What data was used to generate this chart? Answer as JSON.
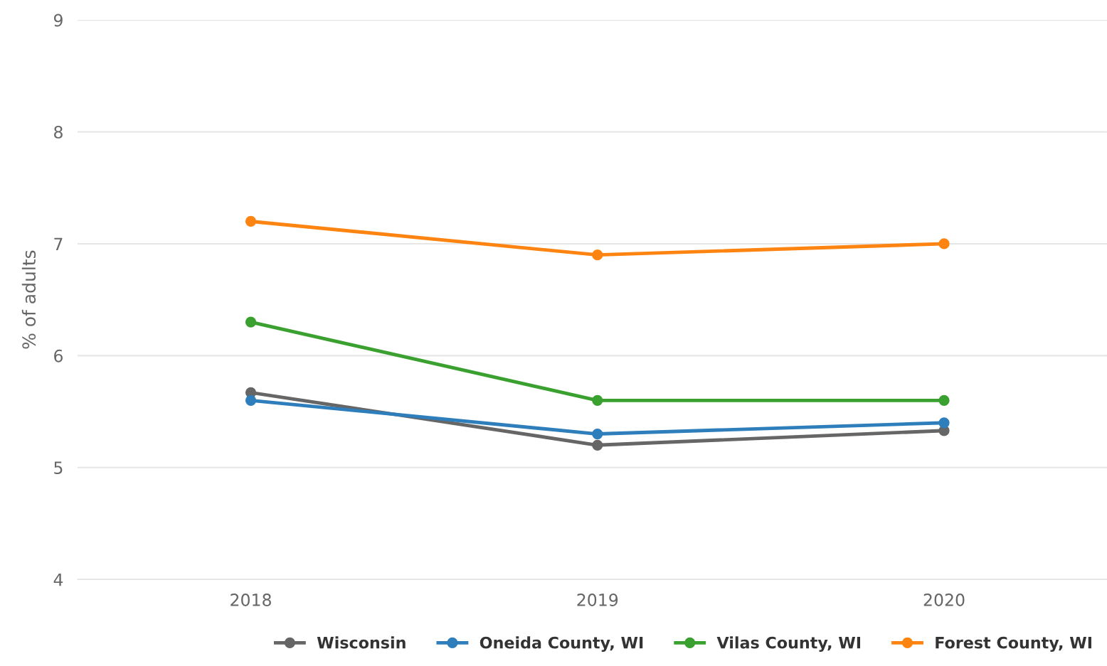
{
  "chart_data": {
    "type": "line",
    "ylabel": "% of adults",
    "categories": [
      "2018",
      "2019",
      "2020"
    ],
    "series": [
      {
        "name": "Wisconsin",
        "color": "#666666",
        "values": [
          5.67,
          5.2,
          5.33
        ]
      },
      {
        "name": "Oneida County, WI",
        "color": "#2f7ebc",
        "values": [
          5.6,
          5.3,
          5.4
        ]
      },
      {
        "name": "Vilas County, WI",
        "color": "#3aa02f",
        "values": [
          6.3,
          5.6,
          5.6
        ]
      },
      {
        "name": "Forest County, WI",
        "color": "#fd8411",
        "values": [
          7.2,
          6.9,
          7.0
        ]
      }
    ],
    "ylim": [
      4,
      9
    ],
    "yticks": [
      4,
      5,
      6,
      7,
      8,
      9
    ],
    "grid": "y",
    "legend": "bottom right",
    "marker": "circle",
    "line_style": "solid"
  }
}
